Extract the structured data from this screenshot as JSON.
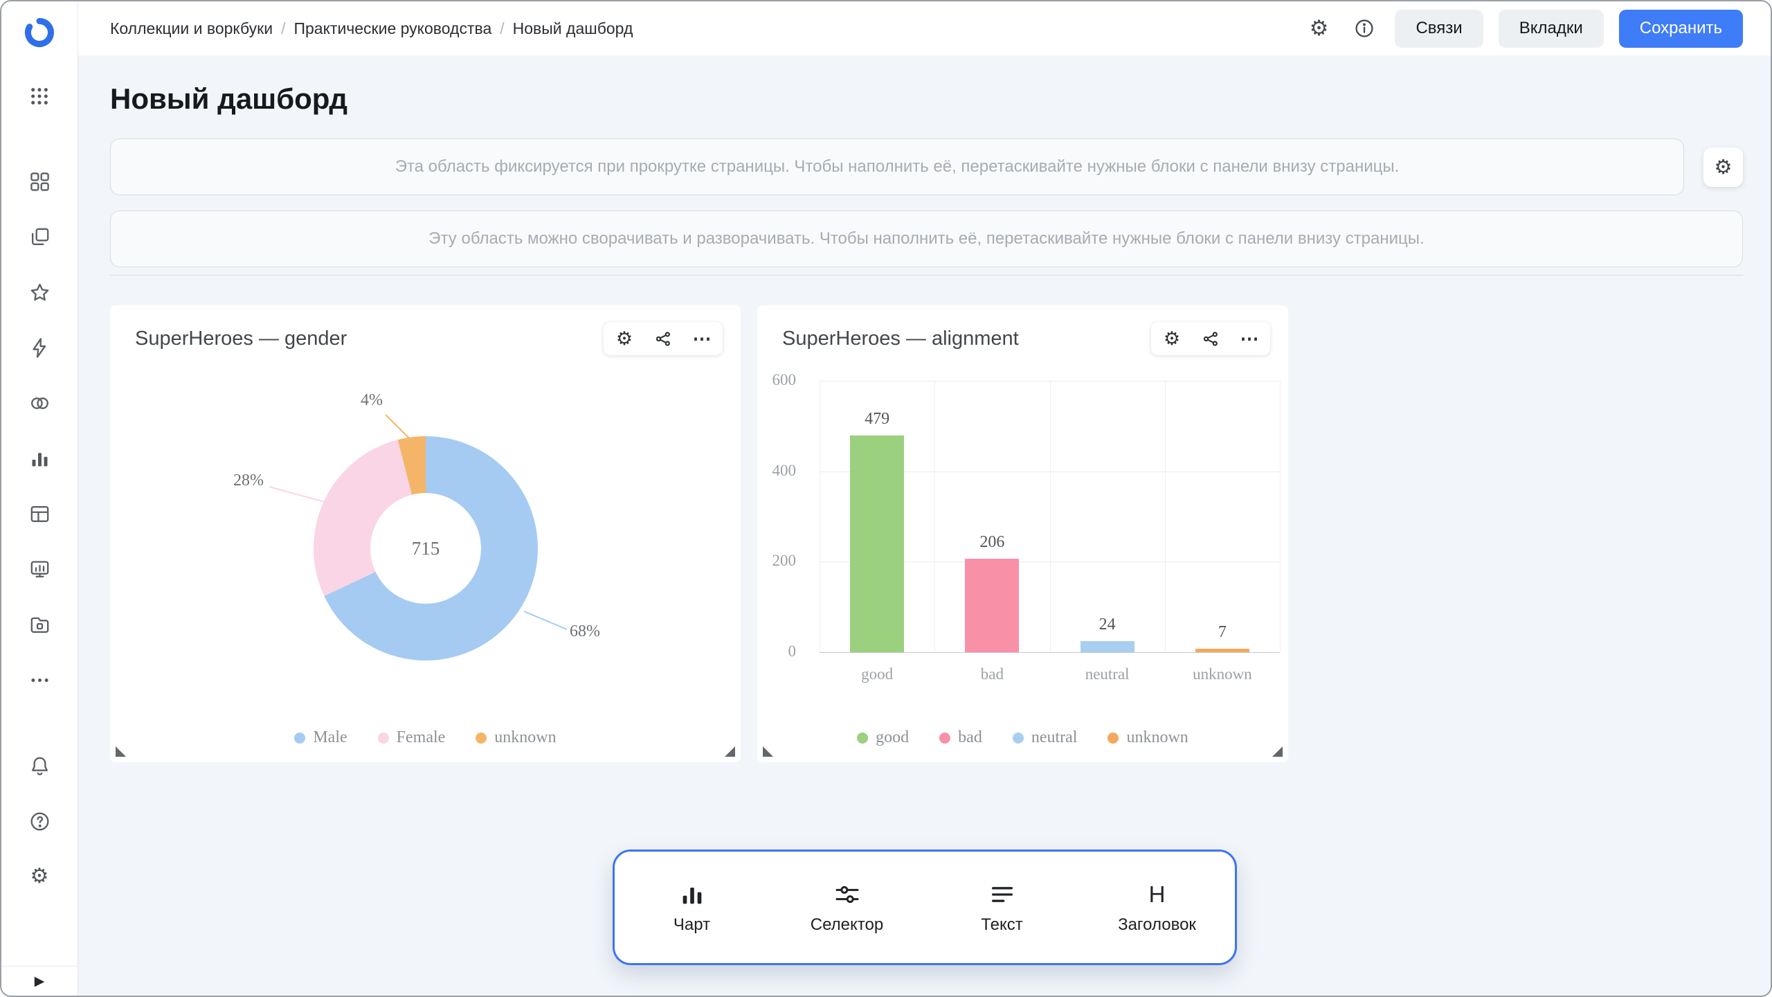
{
  "breadcrumb": {
    "items": [
      "Коллекции и воркбуки",
      "Практические руководства",
      "Новый дашборд"
    ],
    "separator": "/"
  },
  "header": {
    "relations_label": "Связи",
    "tabs_label": "Вкладки",
    "save_label": "Сохранить"
  },
  "page": {
    "title": "Новый дашборд"
  },
  "placeholders": {
    "fixed_text": "Эта область фиксируется при прокрутке страницы. Чтобы наполнить её, перетаскивайте нужные блоки с панели внизу страницы.",
    "collapsible_text": "Эту область можно сворачивать и разворачивать. Чтобы наполнить её, перетаскивайте нужные блоки с панели внизу страницы."
  },
  "icons": {
    "gear": "⚙",
    "ellipsis_h": "⋯",
    "expand": "▶"
  },
  "colors": {
    "accent_blue": "#3f7cf7",
    "panel_border": "#3e74f2",
    "background": "#f2f6fa"
  },
  "chart_data": [
    {
      "type": "pie",
      "subtype": "donut",
      "title": "SuperHeroes — gender",
      "center_total": 715,
      "slices": [
        {
          "label": "Male",
          "percent": 68,
          "color": "#a5cbf3"
        },
        {
          "label": "Female",
          "percent": 28,
          "color": "#f9d5e5"
        },
        {
          "label": "unknown",
          "percent": 4,
          "color": "#f4b568"
        }
      ],
      "legend_position": "bottom"
    },
    {
      "type": "bar",
      "title": "SuperHeroes — alignment",
      "categories": [
        "good",
        "bad",
        "neutral",
        "unknown"
      ],
      "values": [
        479,
        206,
        24,
        7
      ],
      "colors": [
        "#9ad07e",
        "#f891a8",
        "#a8cfef",
        "#f2a95e"
      ],
      "ylim": [
        0,
        600
      ],
      "yticks": [
        0,
        200,
        400,
        600
      ],
      "grid": true,
      "legend_position": "bottom"
    }
  ],
  "bottom_panel": {
    "items": [
      {
        "label": "Чарт"
      },
      {
        "label": "Селектор"
      },
      {
        "label": "Текст"
      },
      {
        "label": "Заголовок",
        "glyph": "H"
      }
    ]
  }
}
